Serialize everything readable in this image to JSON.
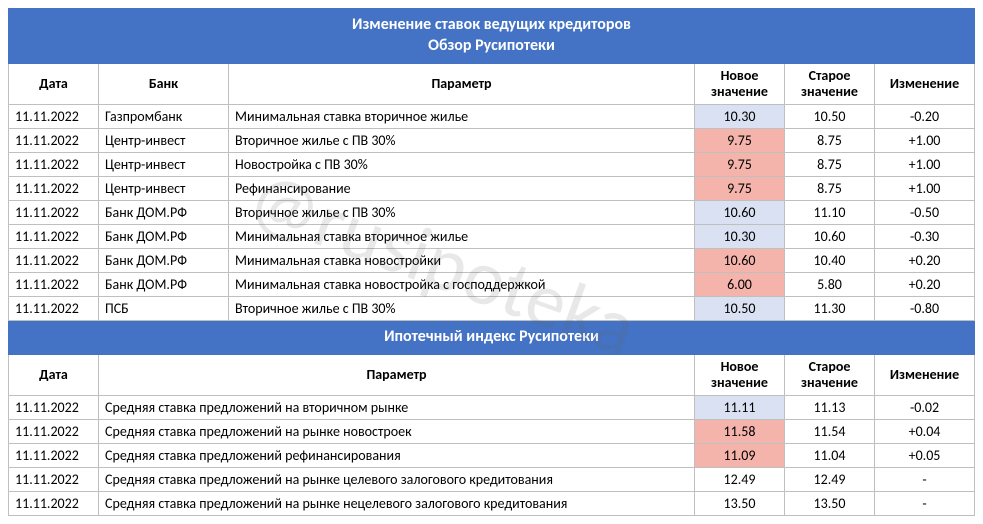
{
  "watermark": "@rusipoteka",
  "colors": {
    "header_bg": "#4472c4",
    "header_fg": "#ffffff",
    "border": "#bfbfbf",
    "hl_blue": "#d9e1f2",
    "hl_red": "#f4b3ab"
  },
  "table1": {
    "title_line1": "Изменение ставок ведущих кредиторов",
    "title_line2": "Обзор Русипотеки",
    "headers": {
      "date": "Дата",
      "bank": "Банк",
      "param": "Параметр",
      "new": "Новое значение",
      "old": "Старое значение",
      "chg": "Изменение"
    },
    "rows": [
      {
        "date": "11.11.2022",
        "bank": "Газпромбанк",
        "param": "Минимальная ставка вторичное жилье",
        "new": "10.30",
        "old": "10.50",
        "chg": "-0.20",
        "hl": "blue"
      },
      {
        "date": "11.11.2022",
        "bank": "Центр-инвест",
        "param": "Вторичное жилье с ПВ 30%",
        "new": "9.75",
        "old": "8.75",
        "chg": "+1.00",
        "hl": "red"
      },
      {
        "date": "11.11.2022",
        "bank": "Центр-инвест",
        "param": "Новостройка с ПВ 30%",
        "new": "9.75",
        "old": "8.75",
        "chg": "+1.00",
        "hl": "red"
      },
      {
        "date": "11.11.2022",
        "bank": "Центр-инвест",
        "param": "Рефинансирование",
        "new": "9.75",
        "old": "8.75",
        "chg": "+1.00",
        "hl": "red"
      },
      {
        "date": "11.11.2022",
        "bank": "Банк ДОМ.РФ",
        "param": "Вторичное жилье с ПВ 30%",
        "new": "10.60",
        "old": "11.10",
        "chg": "-0.50",
        "hl": "blue"
      },
      {
        "date": "11.11.2022",
        "bank": "Банк ДОМ.РФ",
        "param": "Минимальная ставка вторичное жилье",
        "new": "10.30",
        "old": "10.60",
        "chg": "-0.30",
        "hl": "blue"
      },
      {
        "date": "11.11.2022",
        "bank": "Банк ДОМ.РФ",
        "param": "Минимальная ставка новостройки",
        "new": "10.60",
        "old": "10.40",
        "chg": "+0.20",
        "hl": "red"
      },
      {
        "date": "11.11.2022",
        "bank": "Банк ДОМ.РФ",
        "param": "Минимальная ставка новостройка с господдержкой",
        "new": "6.00",
        "old": "5.80",
        "chg": "+0.20",
        "hl": "red"
      },
      {
        "date": "11.11.2022",
        "bank": "ПСБ",
        "param": "Вторичное жилье с ПВ 30%",
        "new": "10.50",
        "old": "11.30",
        "chg": "-0.80",
        "hl": "blue"
      }
    ]
  },
  "table2": {
    "title": "Ипотечный индекс Русипотеки",
    "headers": {
      "date": "Дата",
      "param": "Параметр",
      "new": "Новое значение",
      "old": "Старое значение",
      "chg": "Изменение"
    },
    "rows": [
      {
        "date": "11.11.2022",
        "param": "Средняя ставка предложений на вторичном рынке",
        "new": "11.11",
        "old": "11.13",
        "chg": "-0.02",
        "hl": "blue"
      },
      {
        "date": "11.11.2022",
        "param": "Средняя ставка предложений на рынке новостроек",
        "new": "11.58",
        "old": "11.54",
        "chg": "+0.04",
        "hl": "red"
      },
      {
        "date": "11.11.2022",
        "param": "Средняя ставка предложений рефинансирования",
        "new": "11.09",
        "old": "11.04",
        "chg": "+0.05",
        "hl": "red"
      },
      {
        "date": "11.11.2022",
        "param": "Средняя ставка предложений на рынке целевого залогового кредитования",
        "new": "12.49",
        "old": "12.49",
        "chg": "-",
        "hl": ""
      },
      {
        "date": "11.11.2022",
        "param": "Средняя ставка предложений на рынке нецелевого залогового кредитования",
        "new": "13.50",
        "old": "13.50",
        "chg": "-",
        "hl": ""
      }
    ]
  }
}
